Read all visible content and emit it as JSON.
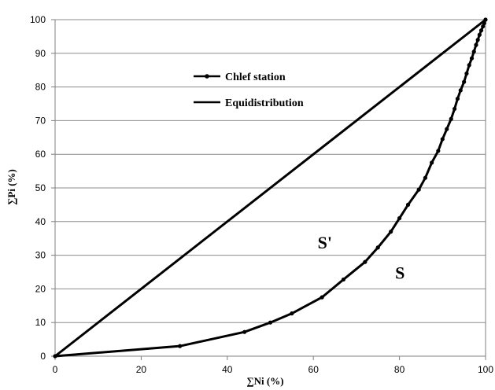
{
  "chart_data": {
    "type": "line",
    "xlabel": "∑Ni (%)",
    "ylabel": "∑Pi (%)",
    "xlim": [
      0,
      100
    ],
    "ylim": [
      0,
      100
    ],
    "x_ticks": [
      0,
      20,
      40,
      60,
      80,
      100
    ],
    "y_ticks": [
      0,
      10,
      20,
      30,
      40,
      50,
      60,
      70,
      80,
      90,
      100
    ],
    "x_tick_labels": [
      "0",
      "20",
      "40",
      "60",
      "80",
      "100"
    ],
    "y_tick_labels": [
      "0",
      "10",
      "20",
      "30",
      "40",
      "50",
      "60",
      "70",
      "80",
      "90",
      "100"
    ],
    "grid": "horizontal",
    "legend_placement": "upper-left",
    "series": [
      {
        "name": "Chlef station",
        "color": "#000000",
        "markers": true,
        "points": [
          [
            0,
            0
          ],
          [
            29,
            3
          ],
          [
            44,
            7.2
          ],
          [
            50,
            10
          ],
          [
            55,
            12.7
          ],
          [
            62,
            17.5
          ],
          [
            67,
            22.8
          ],
          [
            72,
            28
          ],
          [
            75,
            32.3
          ],
          [
            78,
            37
          ],
          [
            80,
            41
          ],
          [
            82,
            45
          ],
          [
            84.5,
            49.5
          ],
          [
            86,
            53
          ],
          [
            87.5,
            57.5
          ],
          [
            89,
            61
          ],
          [
            90,
            64.5
          ],
          [
            91,
            67.5
          ],
          [
            92,
            70.5
          ],
          [
            92.8,
            73.5
          ],
          [
            93.5,
            76.5
          ],
          [
            94.2,
            79
          ],
          [
            95,
            81.5
          ],
          [
            95.6,
            84
          ],
          [
            96.2,
            86.5
          ],
          [
            96.8,
            88.5
          ],
          [
            97.3,
            90.5
          ],
          [
            97.8,
            92.5
          ],
          [
            98.2,
            94
          ],
          [
            98.6,
            95.5
          ],
          [
            99,
            96.8
          ],
          [
            99.4,
            98
          ],
          [
            99.7,
            99
          ],
          [
            100,
            100
          ]
        ]
      },
      {
        "name": "Equidistribution",
        "color": "#000000",
        "markers": false,
        "points": [
          [
            0,
            0
          ],
          [
            100,
            100
          ]
        ]
      }
    ],
    "annotations": [
      {
        "text": "S'",
        "x": 61,
        "y": 32
      },
      {
        "text": "S",
        "x": 79,
        "y": 23
      }
    ]
  }
}
